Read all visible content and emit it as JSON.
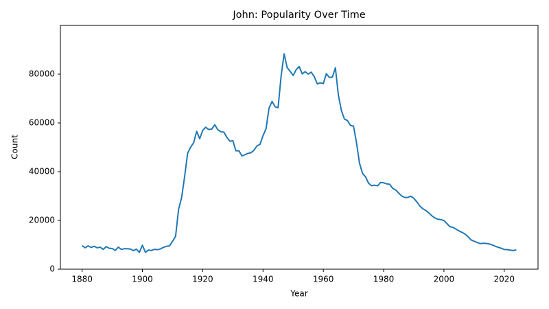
{
  "chart_data": {
    "type": "line",
    "title": "John: Popularity Over Time",
    "x_label": "Year",
    "y_label": "Count",
    "color": "#1f77b4",
    "grid": false,
    "x": [
      1880,
      1881,
      1882,
      1883,
      1884,
      1885,
      1886,
      1887,
      1888,
      1889,
      1890,
      1891,
      1892,
      1893,
      1894,
      1895,
      1896,
      1897,
      1898,
      1899,
      1900,
      1901,
      1902,
      1903,
      1904,
      1905,
      1906,
      1907,
      1908,
      1909,
      1910,
      1911,
      1912,
      1913,
      1914,
      1915,
      1916,
      1917,
      1918,
      1919,
      1920,
      1921,
      1922,
      1923,
      1924,
      1925,
      1926,
      1927,
      1928,
      1929,
      1930,
      1931,
      1932,
      1933,
      1934,
      1935,
      1936,
      1937,
      1938,
      1939,
      1940,
      1941,
      1942,
      1943,
      1944,
      1945,
      1946,
      1947,
      1948,
      1949,
      1950,
      1951,
      1952,
      1953,
      1954,
      1955,
      1956,
      1957,
      1958,
      1959,
      1960,
      1961,
      1962,
      1963,
      1964,
      1965,
      1966,
      1967,
      1968,
      1969,
      1970,
      1971,
      1972,
      1973,
      1974,
      1975,
      1976,
      1977,
      1978,
      1979,
      1980,
      1981,
      1982,
      1983,
      1984,
      1985,
      1986,
      1987,
      1988,
      1989,
      1990,
      1991,
      1992,
      1993,
      1994,
      1995,
      1996,
      1997,
      1998,
      1999,
      2000,
      2001,
      2002,
      2003,
      2004,
      2005,
      2006,
      2007,
      2008,
      2009,
      2010,
      2011,
      2012,
      2013,
      2014,
      2015,
      2016,
      2017,
      2018,
      2019,
      2020,
      2021,
      2022,
      2023,
      2024
    ],
    "values": [
      9655,
      8769,
      9557,
      8894,
      9388,
      8756,
      9026,
      8110,
      9247,
      8548,
      8502,
      7680,
      9033,
      8108,
      8365,
      8394,
      8289,
      7610,
      8221,
      6893,
      9830,
      6886,
      7839,
      7658,
      8161,
      8008,
      8299,
      8967,
      9397,
      9555,
      11450,
      13446,
      24592,
      29331,
      37948,
      47577,
      50043,
      51854,
      56559,
      53526,
      56914,
      58215,
      57280,
      57469,
      59247,
      57224,
      56354,
      56235,
      54101,
      52487,
      52707,
      48571,
      48596,
      46441,
      46936,
      47519,
      47751,
      48792,
      50569,
      51212,
      54770,
      57589,
      66115,
      68801,
      66628,
      66189,
      79249,
      88328,
      82706,
      81165,
      79445,
      81848,
      83133,
      80111,
      81029,
      80041,
      80802,
      78971,
      75990,
      76446,
      76135,
      80186,
      78668,
      78779,
      82589,
      71359,
      65063,
      61601,
      60973,
      58940,
      58746,
      51940,
      43470,
      39281,
      37879,
      35250,
      34225,
      34460,
      34206,
      35566,
      35437,
      35011,
      34833,
      33177,
      32499,
      31215,
      30021,
      29428,
      29413,
      29935,
      29062,
      27620,
      25927,
      24786,
      24066,
      23018,
      21897,
      21004,
      20483,
      20332,
      19934,
      18683,
      17395,
      17153,
      16437,
      15679,
      15110,
      14385,
      13335,
      12033,
      11464,
      10959,
      10501,
      10617,
      10571,
      10343,
      9968,
      9393,
      8979,
      8564,
      8080,
      8029,
      7809,
      7634,
      7946
    ],
    "xlim": [
      1872.8,
      2031.2
    ],
    "xticks": [
      1880,
      1900,
      1920,
      1940,
      1960,
      1980,
      2000,
      2020
    ],
    "ylim": [
      0,
      100000
    ],
    "yticks": [
      0,
      20000,
      40000,
      60000,
      80000
    ]
  }
}
